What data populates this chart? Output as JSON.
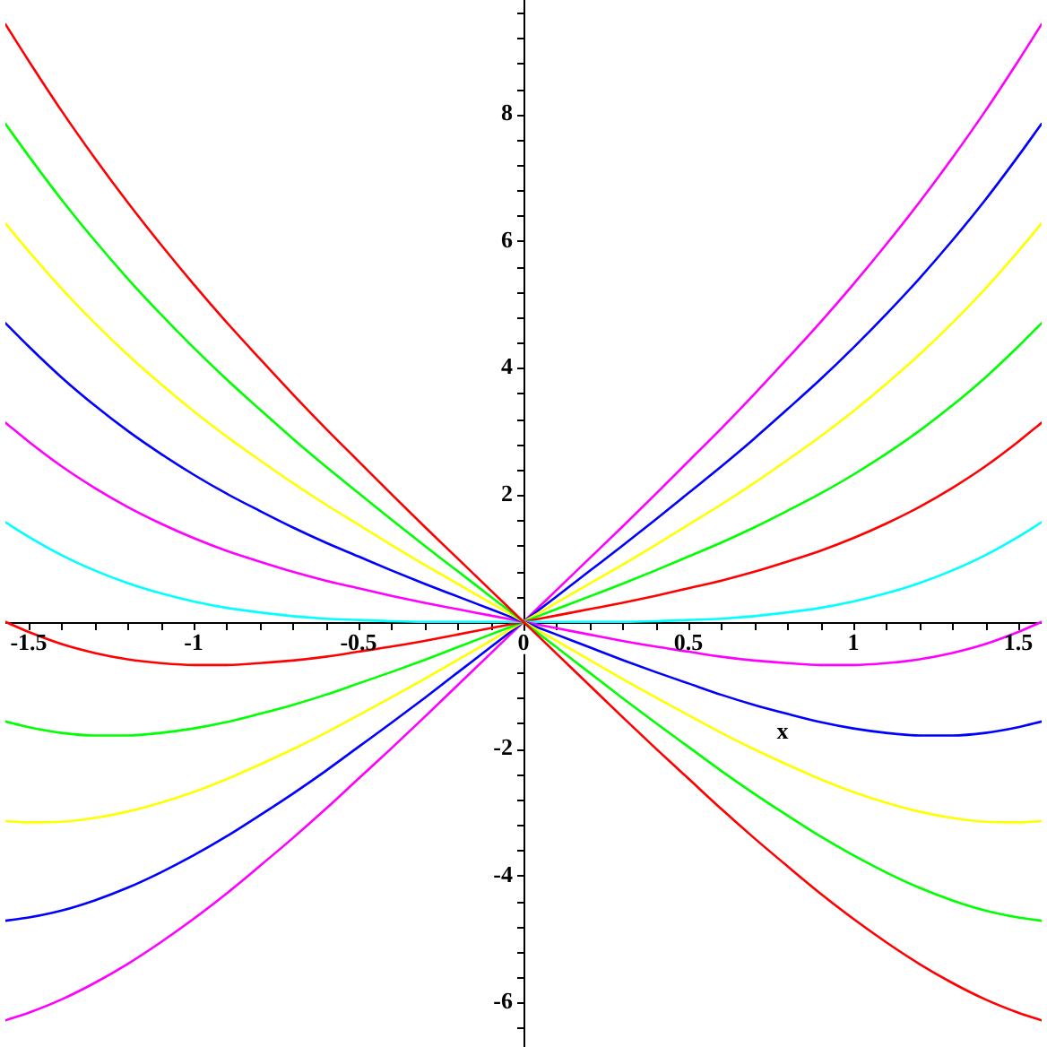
{
  "chart_data": {
    "type": "line",
    "xlabel": "x",
    "x": [
      -1.5708,
      -1.5,
      -1.4,
      -1.3,
      -1.2,
      -1.1,
      -1,
      -0.9,
      -0.8,
      -0.7,
      -0.6,
      -0.5,
      -0.4,
      -0.3,
      -0.2,
      -0.1,
      0,
      0.1,
      0.2,
      0.3,
      0.4,
      0.5,
      0.6,
      0.7,
      0.8,
      0.9,
      1,
      1.1,
      1.2,
      1.3,
      1.4,
      1.5,
      1.5708
    ],
    "series": [
      {
        "color": "#ff0000",
        "values": [
          9.42,
          8.84,
          8.05,
          7.31,
          6.61,
          5.95,
          5.32,
          4.72,
          4.15,
          3.59,
          3.05,
          2.53,
          2.01,
          1.5,
          1,
          0.5,
          0,
          -0.5,
          -1,
          -1.5,
          -1.99,
          -2.47,
          -2.95,
          -3.41,
          -3.85,
          -4.28,
          -4.68,
          -5.05,
          -5.39,
          -5.69,
          -5.95,
          -6.16,
          -6.28
        ]
      },
      {
        "color": "#00ff00",
        "values": [
          7.85,
          7.34,
          6.65,
          6.01,
          5.41,
          4.85,
          4.32,
          3.82,
          3.35,
          2.89,
          2.45,
          2.03,
          1.61,
          1.2,
          0.8,
          0.4,
          0,
          -0.4,
          -0.8,
          -1.2,
          -1.59,
          -1.97,
          -2.35,
          -2.71,
          -3.05,
          -3.38,
          -3.68,
          -3.95,
          -4.19,
          -4.39,
          -4.55,
          -4.66,
          -4.71
        ]
      },
      {
        "color": "#ffff00",
        "values": [
          6.28,
          5.84,
          5.25,
          4.71,
          4.21,
          3.75,
          3.32,
          2.92,
          2.55,
          2.19,
          1.85,
          1.53,
          1.21,
          0.9,
          0.6,
          0.3,
          0,
          -0.3,
          -0.6,
          -0.9,
          -1.19,
          -1.47,
          -1.75,
          -2.01,
          -2.25,
          -2.48,
          -2.68,
          -2.85,
          -2.99,
          -3.09,
          -3.15,
          -3.16,
          -3.14
        ]
      },
      {
        "color": "#0000ff",
        "values": [
          4.71,
          4.34,
          3.85,
          3.41,
          3.01,
          2.65,
          2.32,
          2.02,
          1.75,
          1.49,
          1.25,
          1.03,
          0.81,
          0.6,
          0.4,
          0.2,
          0,
          -0.2,
          -0.4,
          -0.6,
          -0.79,
          -0.97,
          -1.15,
          -1.31,
          -1.45,
          -1.58,
          -1.68,
          -1.75,
          -1.79,
          -1.79,
          -1.75,
          -1.66,
          -1.57
        ]
      },
      {
        "color": "#ff00ff",
        "values": [
          3.14,
          2.84,
          2.45,
          2.11,
          1.81,
          1.55,
          1.32,
          1.12,
          0.95,
          0.79,
          0.65,
          0.53,
          0.41,
          0.3,
          0.2,
          0.1,
          0,
          -0.1,
          -0.2,
          -0.3,
          -0.39,
          -0.47,
          -0.55,
          -0.61,
          -0.65,
          -0.68,
          -0.68,
          -0.65,
          -0.59,
          -0.49,
          -0.35,
          -0.16,
          0
        ]
      },
      {
        "color": "#00ffff",
        "values": [
          1.57,
          1.34,
          1.05,
          0.81,
          0.61,
          0.45,
          0.32,
          0.22,
          0.15,
          0.09,
          0.05,
          0.03,
          0.01,
          0,
          0,
          0,
          0,
          0,
          0,
          0,
          0.01,
          0.03,
          0.05,
          0.09,
          0.15,
          0.22,
          0.32,
          0.45,
          0.61,
          0.81,
          1.05,
          1.34,
          1.57
        ]
      },
      {
        "color": "#ff0000",
        "values": [
          0,
          -0.16,
          -0.35,
          -0.49,
          -0.59,
          -0.65,
          -0.68,
          -0.68,
          -0.65,
          -0.61,
          -0.55,
          -0.47,
          -0.39,
          -0.3,
          -0.2,
          -0.1,
          0,
          0.1,
          0.2,
          0.3,
          0.41,
          0.53,
          0.65,
          0.79,
          0.95,
          1.12,
          1.32,
          1.55,
          1.81,
          2.11,
          2.45,
          2.84,
          3.14
        ]
      },
      {
        "color": "#00ff00",
        "values": [
          -1.57,
          -1.66,
          -1.75,
          -1.79,
          -1.79,
          -1.75,
          -1.68,
          -1.58,
          -1.45,
          -1.31,
          -1.15,
          -0.97,
          -0.79,
          -0.6,
          -0.4,
          -0.2,
          0,
          0.2,
          0.4,
          0.6,
          0.81,
          1.03,
          1.25,
          1.49,
          1.75,
          2.02,
          2.32,
          2.65,
          3.01,
          3.41,
          3.85,
          4.34,
          4.71
        ]
      },
      {
        "color": "#ffff00",
        "values": [
          -3.14,
          -3.16,
          -3.15,
          -3.09,
          -2.99,
          -2.85,
          -2.68,
          -2.48,
          -2.25,
          -2.01,
          -1.75,
          -1.47,
          -1.19,
          -0.9,
          -0.6,
          -0.3,
          0,
          0.3,
          0.6,
          0.9,
          1.21,
          1.53,
          1.85,
          2.19,
          2.55,
          2.92,
          3.32,
          3.75,
          4.21,
          4.71,
          5.25,
          5.84,
          6.28
        ]
      },
      {
        "color": "#0000ff",
        "values": [
          -4.71,
          -4.66,
          -4.55,
          -4.39,
          -4.19,
          -3.95,
          -3.68,
          -3.38,
          -3.05,
          -2.71,
          -2.35,
          -1.97,
          -1.59,
          -1.2,
          -0.8,
          -0.4,
          0,
          0.4,
          0.8,
          1.2,
          1.61,
          2.03,
          2.45,
          2.89,
          3.35,
          3.82,
          4.32,
          4.85,
          5.41,
          6.01,
          6.65,
          7.34,
          7.85
        ]
      },
      {
        "color": "#ff00ff",
        "values": [
          -6.28,
          -6.16,
          -5.95,
          -5.69,
          -5.39,
          -5.05,
          -4.68,
          -4.28,
          -3.85,
          -3.41,
          -2.95,
          -2.47,
          -1.99,
          -1.5,
          -1,
          -0.5,
          0,
          0.5,
          1,
          1.5,
          2.01,
          2.53,
          3.05,
          3.59,
          4.15,
          4.72,
          5.32,
          5.95,
          6.61,
          7.31,
          8.05,
          8.84,
          9.42
        ]
      }
    ],
    "xlim": [
      -1.5708,
      1.5708
    ],
    "ylim": [
      -6.7,
      9.8
    ],
    "xticks": [
      -1.5,
      {
        "value": -1.4,
        "label": null
      },
      {
        "value": -1.3,
        "label": null
      },
      {
        "value": -1.2,
        "label": null
      },
      {
        "value": -1.1,
        "label": null
      },
      -1,
      {
        "value": -0.9,
        "label": null
      },
      {
        "value": -0.8,
        "label": null
      },
      {
        "value": -0.7,
        "label": null
      },
      {
        "value": -0.6,
        "label": null
      },
      -0.5,
      {
        "value": -0.4,
        "label": null
      },
      {
        "value": -0.3,
        "label": null
      },
      {
        "value": -0.2,
        "label": null
      },
      {
        "value": -0.1,
        "label": null
      },
      0,
      {
        "value": 0.1,
        "label": null
      },
      {
        "value": 0.2,
        "label": null
      },
      {
        "value": 0.3,
        "label": null
      },
      {
        "value": 0.4,
        "label": null
      },
      0.5,
      {
        "value": 0.6,
        "label": null
      },
      {
        "value": 0.7,
        "label": null
      },
      {
        "value": 0.8,
        "label": null
      },
      {
        "value": 0.9,
        "label": null
      },
      1,
      {
        "value": 1.1,
        "label": null
      },
      {
        "value": 1.2,
        "label": null
      },
      {
        "value": 1.3,
        "label": null
      },
      {
        "value": 1.4,
        "label": null
      },
      1.5
    ],
    "yticks": [
      {
        "value": -6.4,
        "label": null
      },
      -6,
      {
        "value": -5.6,
        "label": null
      },
      {
        "value": -5.2,
        "label": null
      },
      {
        "value": -4.8,
        "label": null
      },
      {
        "value": -4.4,
        "label": null
      },
      -4,
      {
        "value": -3.6,
        "label": null
      },
      {
        "value": -3.2,
        "label": null
      },
      {
        "value": -2.8,
        "label": null
      },
      {
        "value": -2.4,
        "label": null
      },
      -2,
      {
        "value": -1.6,
        "label": null
      },
      {
        "value": -1.2,
        "label": null
      },
      {
        "value": -0.8,
        "label": null
      },
      {
        "value": -0.4,
        "label": null
      },
      {
        "value": 0.4,
        "label": null
      },
      {
        "value": 0.8,
        "label": null
      },
      {
        "value": 1.2,
        "label": null
      },
      {
        "value": 1.6,
        "label": null
      },
      2,
      {
        "value": 2.4,
        "label": null
      },
      {
        "value": 2.8,
        "label": null
      },
      {
        "value": 3.2,
        "label": null
      },
      {
        "value": 3.6,
        "label": null
      },
      4,
      {
        "value": 4.4,
        "label": null
      },
      {
        "value": 4.8,
        "label": null
      },
      {
        "value": 5.2,
        "label": null
      },
      {
        "value": 5.6,
        "label": null
      },
      6,
      {
        "value": 6.4,
        "label": null
      },
      {
        "value": 6.8,
        "label": null
      },
      {
        "value": 7.2,
        "label": null
      },
      {
        "value": 7.6,
        "label": null
      },
      8,
      {
        "value": 8.4,
        "label": null
      },
      {
        "value": 8.8,
        "label": null
      },
      {
        "value": 9.2,
        "label": null
      },
      {
        "value": 9.6,
        "label": null
      }
    ],
    "grid": false,
    "legend": false,
    "marker": "none",
    "line_style": "solid"
  }
}
